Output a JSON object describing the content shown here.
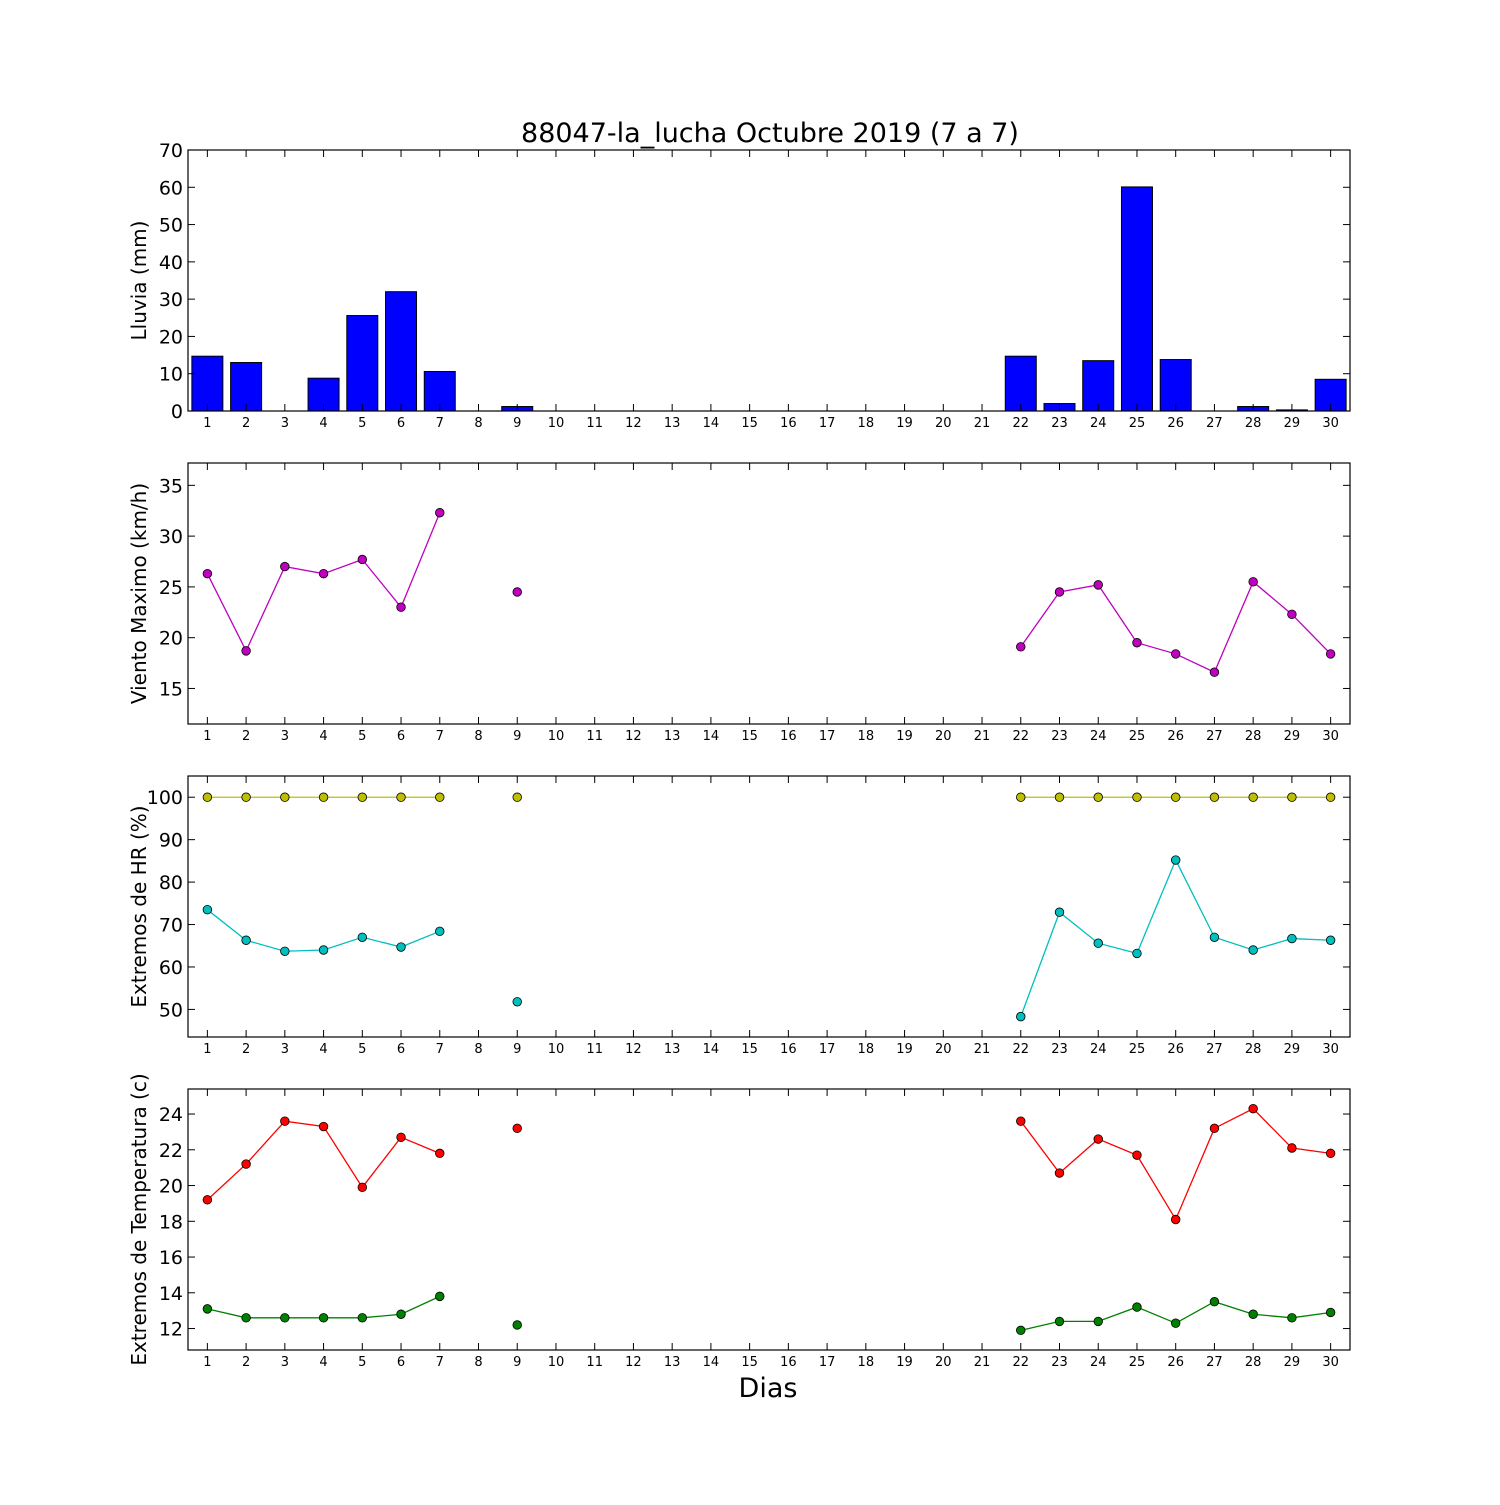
{
  "chart_data": {
    "title": "88047-la_lucha Octubre 2019  (7 a 7)",
    "xlabel": "Dias",
    "days": [
      1,
      2,
      3,
      4,
      5,
      6,
      7,
      8,
      9,
      10,
      11,
      12,
      13,
      14,
      15,
      16,
      17,
      18,
      19,
      20,
      21,
      22,
      23,
      24,
      25,
      26,
      27,
      28,
      29,
      30
    ],
    "panels": [
      {
        "type": "bar",
        "ylabel": "Lluvia (mm)",
        "ylim": [
          0,
          70
        ],
        "yticks": [
          0,
          10,
          20,
          30,
          40,
          50,
          60,
          70
        ],
        "series": [
          {
            "color": "#0000ff",
            "values": [
              14.7,
              13.0,
              0,
              8.8,
              25.6,
              32.0,
              10.6,
              0,
              1.2,
              0,
              0,
              0,
              0,
              0,
              0,
              0,
              0,
              0,
              0,
              0,
              0,
              14.7,
              2.0,
              13.5,
              60.1,
              13.8,
              0,
              1.2,
              0.3,
              8.5
            ]
          }
        ]
      },
      {
        "type": "line",
        "ylabel": "Viento Maximo (km/h)",
        "ylim": [
          11.5,
          37.2
        ],
        "yticks": [
          15,
          20,
          25,
          30,
          35
        ],
        "series": [
          {
            "color": "#bf00bf",
            "values": [
              26.3,
              18.7,
              27.0,
              26.3,
              27.7,
              23.0,
              32.3,
              null,
              24.5,
              null,
              null,
              null,
              null,
              null,
              null,
              null,
              null,
              null,
              null,
              null,
              null,
              19.1,
              24.5,
              25.2,
              19.5,
              18.4,
              16.6,
              25.5,
              22.3,
              18.4
            ]
          }
        ]
      },
      {
        "type": "line",
        "ylabel": "Extremos de HR (%)",
        "ylim": [
          43.5,
          105
        ],
        "yticks": [
          50,
          60,
          70,
          80,
          90,
          100
        ],
        "series": [
          {
            "color": "#bfbf00",
            "values": [
              100,
              100,
              100,
              100,
              100,
              100,
              100,
              null,
              100,
              null,
              null,
              null,
              null,
              null,
              null,
              null,
              null,
              null,
              null,
              null,
              null,
              100,
              100,
              100,
              100,
              100,
              100,
              100,
              100,
              100
            ]
          },
          {
            "color": "#00bfbf",
            "values": [
              73.5,
              66.3,
              63.7,
              64.0,
              67.0,
              64.7,
              68.4,
              null,
              51.8,
              null,
              null,
              null,
              null,
              null,
              null,
              null,
              null,
              null,
              null,
              null,
              null,
              48.3,
              72.9,
              65.6,
              63.2,
              85.2,
              67.0,
              64.0,
              66.7,
              66.3
            ]
          }
        ]
      },
      {
        "type": "line",
        "ylabel": "Extremos de Temperatura (c)",
        "ylim": [
          10.8,
          25.4
        ],
        "yticks": [
          12,
          14,
          16,
          18,
          20,
          22,
          24
        ],
        "series": [
          {
            "color": "#ff0000",
            "values": [
              19.2,
              21.2,
              23.6,
              23.3,
              19.9,
              22.7,
              21.8,
              null,
              23.2,
              null,
              null,
              null,
              null,
              null,
              null,
              null,
              null,
              null,
              null,
              null,
              null,
              23.6,
              20.7,
              22.6,
              21.7,
              18.1,
              23.2,
              24.3,
              22.1,
              21.8
            ]
          },
          {
            "color": "#008000",
            "values": [
              13.1,
              12.6,
              12.6,
              12.6,
              12.6,
              12.8,
              13.8,
              null,
              12.2,
              null,
              null,
              null,
              null,
              null,
              null,
              null,
              null,
              null,
              null,
              null,
              null,
              11.9,
              12.4,
              12.4,
              13.2,
              12.3,
              13.5,
              12.8,
              12.6,
              12.9
            ]
          }
        ]
      }
    ]
  }
}
